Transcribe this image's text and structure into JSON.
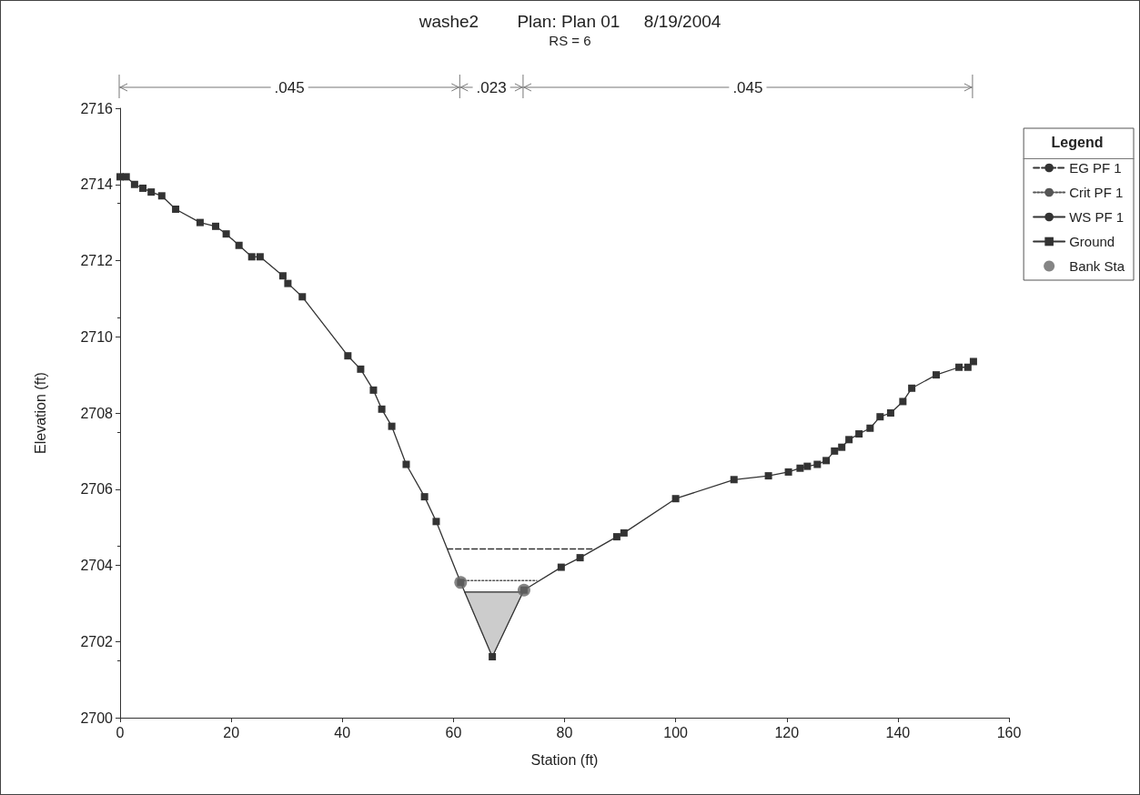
{
  "chart_data": {
    "type": "line",
    "title": "washe2        Plan: Plan 01     8/19/2004",
    "subtitle": "RS = 6",
    "xlabel": "Station (ft)",
    "ylabel": "Elevation (ft)",
    "legend_title": "Legend",
    "annotations": [
      ".045",
      ".023",
      ".045"
    ],
    "xlim": [
      0,
      160
    ],
    "xticks": [
      0,
      20,
      40,
      60,
      80,
      100,
      120,
      140,
      160
    ],
    "ylim": [
      2700,
      2716
    ],
    "yticks": [
      2700,
      2702,
      2704,
      2706,
      2708,
      2710,
      2712,
      2714,
      2716
    ],
    "grid": false,
    "legend": "top right",
    "series": [
      {
        "name": "EG PF 1",
        "type": "line",
        "color": "#333333",
        "line_style": "dashed",
        "marker": "none",
        "x": [
          58.9,
          85.3
        ],
        "values": [
          2704.43,
          2704.43
        ]
      },
      {
        "name": "Crit PF 1",
        "type": "line",
        "color": "#555555",
        "line_style": "dotted",
        "marker": "none",
        "x": [
          61.2,
          75.0
        ],
        "values": [
          2703.6,
          2703.6
        ]
      },
      {
        "name": "WS PF 1",
        "type": "line",
        "color": "#333333",
        "line_style": "solid",
        "marker": "none",
        "x": [
          62.0,
          67.0,
          72.5
        ],
        "values": [
          2703.3,
          2703.3,
          2703.3
        ],
        "lower": [
          2703.3,
          2701.6,
          2703.3
        ],
        "upper": [
          2703.3,
          2703.3,
          2703.3
        ]
      },
      {
        "name": "Ground",
        "type": "line",
        "color": "#333333",
        "line_style": "solid",
        "marker": "square",
        "x": [
          0,
          1.1,
          2.6,
          4.1,
          5.6,
          7.5,
          10,
          14.4,
          17.2,
          19.1,
          21.4,
          23.7,
          25.2,
          29.3,
          30.2,
          32.8,
          41,
          43.3,
          45.6,
          47.1,
          48.9,
          51.5,
          54.8,
          56.9,
          61.3,
          67,
          72.7,
          79.4,
          82.8,
          89.4,
          90.7,
          100,
          110.5,
          116.7,
          120.3,
          122.4,
          123.7,
          125.5,
          127.1,
          128.6,
          129.9,
          131.2,
          133,
          135,
          136.8,
          138.7,
          140.9,
          142.5,
          146.9,
          151,
          152.6,
          153.6
        ],
        "values": [
          2714.2,
          2714.2,
          2714.0,
          2713.9,
          2713.8,
          2713.7,
          2713.35,
          2713.0,
          2712.9,
          2712.7,
          2712.4,
          2712.1,
          2712.1,
          2711.6,
          2711.4,
          2711.05,
          2709.5,
          2709.15,
          2708.6,
          2708.1,
          2707.65,
          2706.65,
          2705.8,
          2705.15,
          2703.55,
          2701.6,
          2703.35,
          2703.95,
          2704.2,
          2704.75,
          2704.85,
          2705.75,
          2706.25,
          2706.35,
          2706.45,
          2706.55,
          2706.6,
          2706.65,
          2706.75,
          2707.0,
          2707.1,
          2707.3,
          2707.45,
          2707.6,
          2707.9,
          2708.0,
          2708.3,
          2708.65,
          2709.0,
          2709.2,
          2709.2,
          2709.35
        ]
      },
      {
        "name": "Bank Sta",
        "type": "scatter",
        "color": "#666666",
        "marker": "circle",
        "x": [
          61.3,
          72.7
        ],
        "values": [
          2703.55,
          2703.35
        ]
      }
    ]
  }
}
